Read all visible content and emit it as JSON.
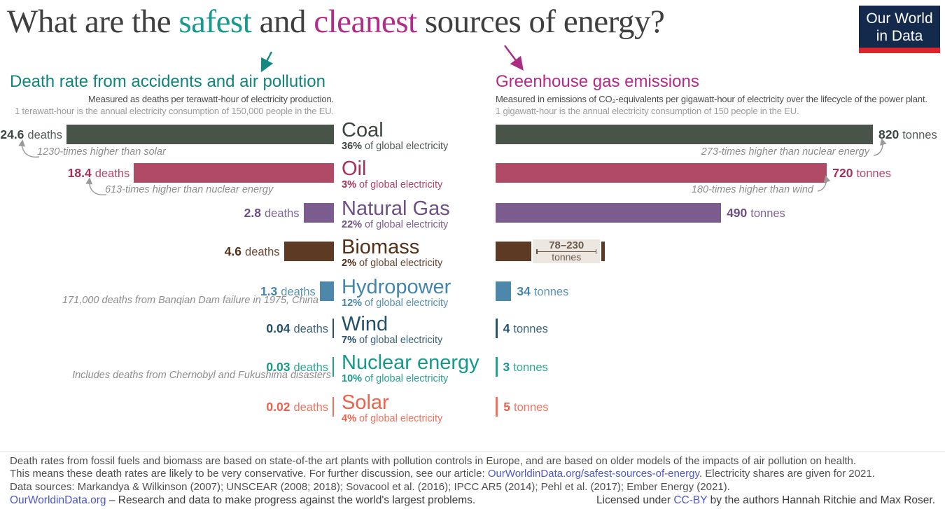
{
  "page": {
    "title_pre": "What are the ",
    "title_safest": "safest",
    "title_and": " and ",
    "title_cleanest": "cleanest",
    "title_post": " sources of energy?",
    "logo_line1": "Our World",
    "logo_line2": "in Data"
  },
  "left_panel": {
    "heading": "Death rate from accidents and air pollution",
    "subtitle": "Measured as deaths per terawatt-hour of electricity production.",
    "note": "1 terawatt-hour is the annual electricity consumption of 150,000 people in the EU."
  },
  "right_panel": {
    "heading": "Greenhouse gas emissions",
    "subtitle": "Measured in emissions of CO₂-equivalents per gigawatt-hour of electricity over the lifecycle of the power plant.",
    "note": "1 gigawatt-hour is the annual electricity consumption of 150 people in the EU."
  },
  "rows": [
    {
      "name": "Coal",
      "deaths": 24.6,
      "deaths_unit": "deaths",
      "tonnes": 820,
      "tonnes_unit": "tonnes",
      "share": "36%",
      "share_text": "of global electricity",
      "color": "#485349",
      "text_color": "#3d453f",
      "note_left": "1230-times higher than solar",
      "note_right": "273-times higher than nuclear energy"
    },
    {
      "name": "Oil",
      "deaths": 18.4,
      "deaths_unit": "deaths",
      "tonnes": 720,
      "tonnes_unit": "tonnes",
      "share": "3%",
      "share_text": "of global electricity",
      "color": "#b04a66",
      "text_color": "#a72f58",
      "note_left": "613-times higher than nuclear energy",
      "note_right": "180-times higher than wind"
    },
    {
      "name": "Natural Gas",
      "deaths": 2.8,
      "deaths_unit": "deaths",
      "tonnes": 490,
      "tonnes_unit": "tonnes",
      "share": "22%",
      "share_text": "of global electricity",
      "color": "#7a5c8e",
      "text_color": "#6d5185"
    },
    {
      "name": "Biomass",
      "deaths": 4.6,
      "deaths_unit": "deaths",
      "range": [
        78,
        230
      ],
      "range_label": "78–230",
      "tonnes_unit": "tonnes",
      "share": "2%",
      "share_text": "of global electricity",
      "color": "#5d3a24",
      "text_color": "#552f18"
    },
    {
      "name": "Hydropower",
      "deaths": 1.3,
      "deaths_unit": "deaths",
      "tonnes": 34,
      "tonnes_unit": "tonnes",
      "share": "12%",
      "share_text": "of global electricity",
      "color": "#4d87a9",
      "text_color": "#4386ad",
      "note_bottom": "171,000 deaths from Banqian Dam failure in 1975, China"
    },
    {
      "name": "Wind",
      "deaths": 0.04,
      "deaths_unit": "deaths",
      "tonnes": 4,
      "tonnes_unit": "tonnes",
      "share": "7%",
      "share_text": "of global electricity",
      "color": "#28536e",
      "text_color": "#234f68"
    },
    {
      "name": "Nuclear energy",
      "deaths": 0.03,
      "deaths_unit": "deaths",
      "tonnes": 3,
      "tonnes_unit": "tonnes",
      "share": "10%",
      "share_text": "of global electricity",
      "color": "#1fa390",
      "text_color": "#14998a",
      "note_bottom": "Includes deaths from Chernobyl and Fukushima disasters"
    },
    {
      "name": "Solar",
      "deaths": 0.02,
      "deaths_unit": "deaths",
      "tonnes": 5,
      "tonnes_unit": "tonnes",
      "share": "4%",
      "share_text": "of global electricity",
      "color": "#f2705e",
      "text_color": "#f0614b"
    }
  ],
  "footer": {
    "line1": "Death rates from fossil fuels and biomass are based on state-of-the art plants with pollution controls in Europe, and are based on older models of the impacts of air pollution on health.",
    "line2_pre": "This means these death rates are likely to be very conservative. For further discussion, see our article: ",
    "line2_link": "OurWorldinData.org/safest-sources-of-energy",
    "line2_post": ". Electricity shares are given for 2021.",
    "line3": "Data sources: Markandya & Wilkinson (2007); UNSCEAR (2008; 2018); Sovacool et al. (2016); IPCC AR5 (2014); Pehl et al. (2017); Ember Energy (2021).",
    "line4_link": "OurWorldinData.org",
    "line4_rest": " – Research and data to make progress against the world's largest problems.",
    "license_pre": "Licensed under ",
    "license_link": "CC-BY",
    "license_post": " by the authors Hannah Ritchie and Max Roser."
  },
  "chart_data": {
    "type": "bar",
    "orientation": "horizontal",
    "title": "What are the safest and cleanest sources of energy?",
    "categories": [
      "Coal",
      "Oil",
      "Natural Gas",
      "Biomass",
      "Hydropower",
      "Wind",
      "Nuclear energy",
      "Solar"
    ],
    "series": [
      {
        "name": "Death rate from accidents and air pollution (deaths per terawatt-hour of electricity production)",
        "values": [
          24.6,
          18.4,
          2.8,
          4.6,
          1.3,
          0.04,
          0.03,
          0.02
        ]
      },
      {
        "name": "Greenhouse gas emissions (tonnes of CO₂-equivalents per gigawatt-hour, lifecycle of the power plant)",
        "values": [
          820,
          720,
          490,
          [
            78,
            230
          ],
          34,
          4,
          3,
          5
        ]
      }
    ],
    "share_of_global_electricity_percent": [
      36,
      3,
      22,
      2,
      12,
      7,
      10,
      4
    ],
    "annotations": [
      "1230-times higher than solar",
      "613-times higher than nuclear energy",
      "171,000 deaths from Banqian Dam failure in 1975, China",
      "Includes deaths from Chernobyl and Fukushima disasters",
      "273-times higher than nuclear energy",
      "180-times higher than wind"
    ],
    "grid": false,
    "legend_position": "none"
  }
}
